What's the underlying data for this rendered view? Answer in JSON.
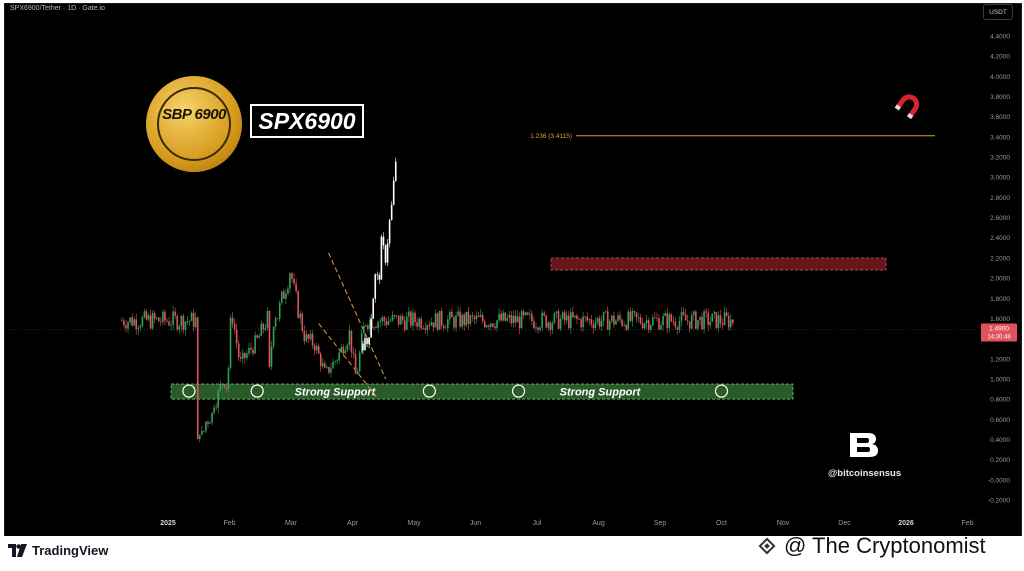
{
  "header": {
    "pair_label": "SPX6900/Tether · 1D · Gate.io",
    "currency": "USDT"
  },
  "branding": {
    "coin_logo_text": "SBP 6900",
    "ticker": "SPX6900",
    "watermark_handle": "@bitcoinsensus",
    "platform": "TradingView",
    "credit": "@ The Cryptonomist"
  },
  "colors": {
    "background": "#000000",
    "up_candle": "#2fa35a",
    "down_candle": "#e0525d",
    "projection_candle": "#ffffff",
    "support_zone": "#2f6b2f",
    "resistance_zone": "#7a1a1f",
    "fib_line": "#e39a3a",
    "wedge_line": "#e39a3a",
    "price_tag": "#e0525d"
  },
  "chart_data": {
    "type": "candlestick",
    "title": "",
    "xlabel": "",
    "ylabel": "",
    "ylim": [
      -0.3,
      4.55
    ],
    "y_ticks": [
      "4.4000",
      "4.2000",
      "4.0000",
      "3.8000",
      "3.6000",
      "3.4000",
      "3.2000",
      "3.0000",
      "2.8000",
      "2.6000",
      "2.4000",
      "2.2000",
      "2.0000",
      "1.8000",
      "1.6000",
      "1.4000",
      "1.2000",
      "1.0000",
      "0.8000",
      "0.6000",
      "0.4000",
      "0.2000",
      "-0.0000",
      "-0.2000"
    ],
    "x_ticks": [
      "2025",
      "Feb",
      "Mar",
      "Apr",
      "May",
      "Jun",
      "Jul",
      "Aug",
      "Sep",
      "Oct",
      "Nov",
      "Dec",
      "2026",
      "Feb"
    ],
    "current_price": "1.4900",
    "countdown": "14:30:48",
    "fib_level": {
      "label": "1.236 (3.4115)",
      "value": 3.4115
    },
    "zones": [
      {
        "name": "Strong Support",
        "low": 0.8,
        "high": 0.95,
        "from": "Jan 2025",
        "to": "Oct 2025"
      },
      {
        "name": "",
        "low": 2.08,
        "high": 2.2,
        "from": "Jul 2025",
        "to": "Dec 2025"
      }
    ],
    "support_touches": [
      "Jan",
      "Feb",
      "May",
      "Jun",
      "Oct"
    ],
    "price_path": [
      [
        0.7,
        0.74
      ],
      [
        0.9,
        0.93
      ],
      [
        1.6,
        1.62
      ],
      [
        1.15,
        1.17
      ],
      [
        1.7,
        1.73
      ],
      [
        0.95,
        0.97
      ],
      [
        0.75,
        0.78
      ],
      [
        0.4,
        0.45
      ],
      [
        0.38,
        0.48
      ],
      [
        0.55,
        0.59
      ],
      [
        0.6,
        0.64
      ],
      [
        0.48,
        0.52
      ],
      [
        0.45,
        0.58
      ],
      [
        0.55,
        0.66
      ],
      [
        0.86,
        0.77
      ],
      [
        0.9,
        0.83
      ],
      [
        1.0,
        0.91
      ],
      [
        1.7,
        1.03
      ],
      [
        1.2,
        1.23
      ],
      [
        1.38,
        1.45
      ],
      [
        1.0,
        1.64
      ],
      [
        1.6,
        1.77
      ],
      [
        2.1,
        1.99
      ],
      [
        1.86,
        2.05
      ],
      [
        1.4,
        2.23
      ],
      [
        1.35,
        2.38
      ],
      [
        1.05,
        2.56
      ],
      [
        1.2,
        2.74
      ],
      [
        1.45,
        2.95
      ],
      [
        1.0,
        3.06
      ],
      [
        1.3,
        3.13
      ],
      [
        1.42,
        3.16
      ],
      [
        1.58,
        3.21
      ]
    ],
    "projection_path": [
      [
        1.35,
        3.17
      ],
      [
        1.35,
        3.24
      ],
      [
        1.55,
        3.29
      ],
      [
        1.75,
        3.32
      ],
      [
        2.0,
        3.37
      ],
      [
        1.95,
        3.42
      ],
      [
        2.3,
        3.47
      ],
      [
        2.2,
        3.53
      ],
      [
        2.45,
        3.58
      ],
      [
        2.65,
        3.63
      ],
      [
        2.8,
        3.66
      ],
      [
        3.15,
        3.7
      ],
      [
        3.4,
        3.72
      ]
    ],
    "wedge_upper": [
      [
        2.25,
        2.61
      ],
      [
        1.0,
        3.54
      ]
    ],
    "wedge_lower": [
      [
        1.55,
        2.45
      ],
      [
        0.8,
        3.42
      ]
    ],
    "legend": "none",
    "grid": false
  }
}
